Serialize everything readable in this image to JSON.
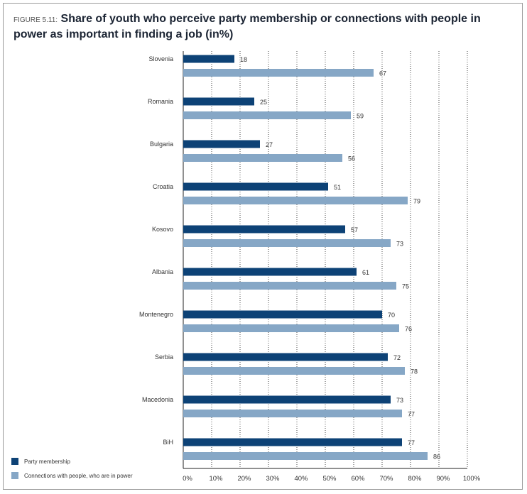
{
  "figure": {
    "label": "FIGURE 5.11:",
    "title": "Share of youth who perceive party membership or connections with people in power as important in finding a job (in%)"
  },
  "colors": {
    "party": "#0d4276",
    "connections": "#86a7c6",
    "grid": "#222222",
    "text": "#333333"
  },
  "legend": [
    {
      "label": "Party membership",
      "color": "#0d4276"
    },
    {
      "label": "Connections with people, who are in power",
      "color": "#86a7c6"
    }
  ],
  "chart_data": {
    "type": "bar",
    "orientation": "horizontal",
    "categories": [
      "Slovenia",
      "Romania",
      "Bulgaria",
      "Croatia",
      "Kosovo",
      "Albania",
      "Montenegro",
      "Serbia",
      "Macedonia",
      "BiH"
    ],
    "series": [
      {
        "name": "Party membership",
        "values": [
          18,
          25,
          27,
          51,
          57,
          61,
          70,
          72,
          73,
          77
        ]
      },
      {
        "name": "Connections with people, who are in power",
        "values": [
          67,
          59,
          56,
          79,
          73,
          75,
          76,
          78,
          77,
          86
        ]
      }
    ],
    "xlim": [
      0,
      100
    ],
    "xticks": [
      "0%",
      "10%",
      "20%",
      "30%",
      "40%",
      "50%",
      "60%",
      "70%",
      "80%",
      "90%",
      "100%"
    ],
    "grid": true,
    "legend_position": "bottom-left"
  }
}
